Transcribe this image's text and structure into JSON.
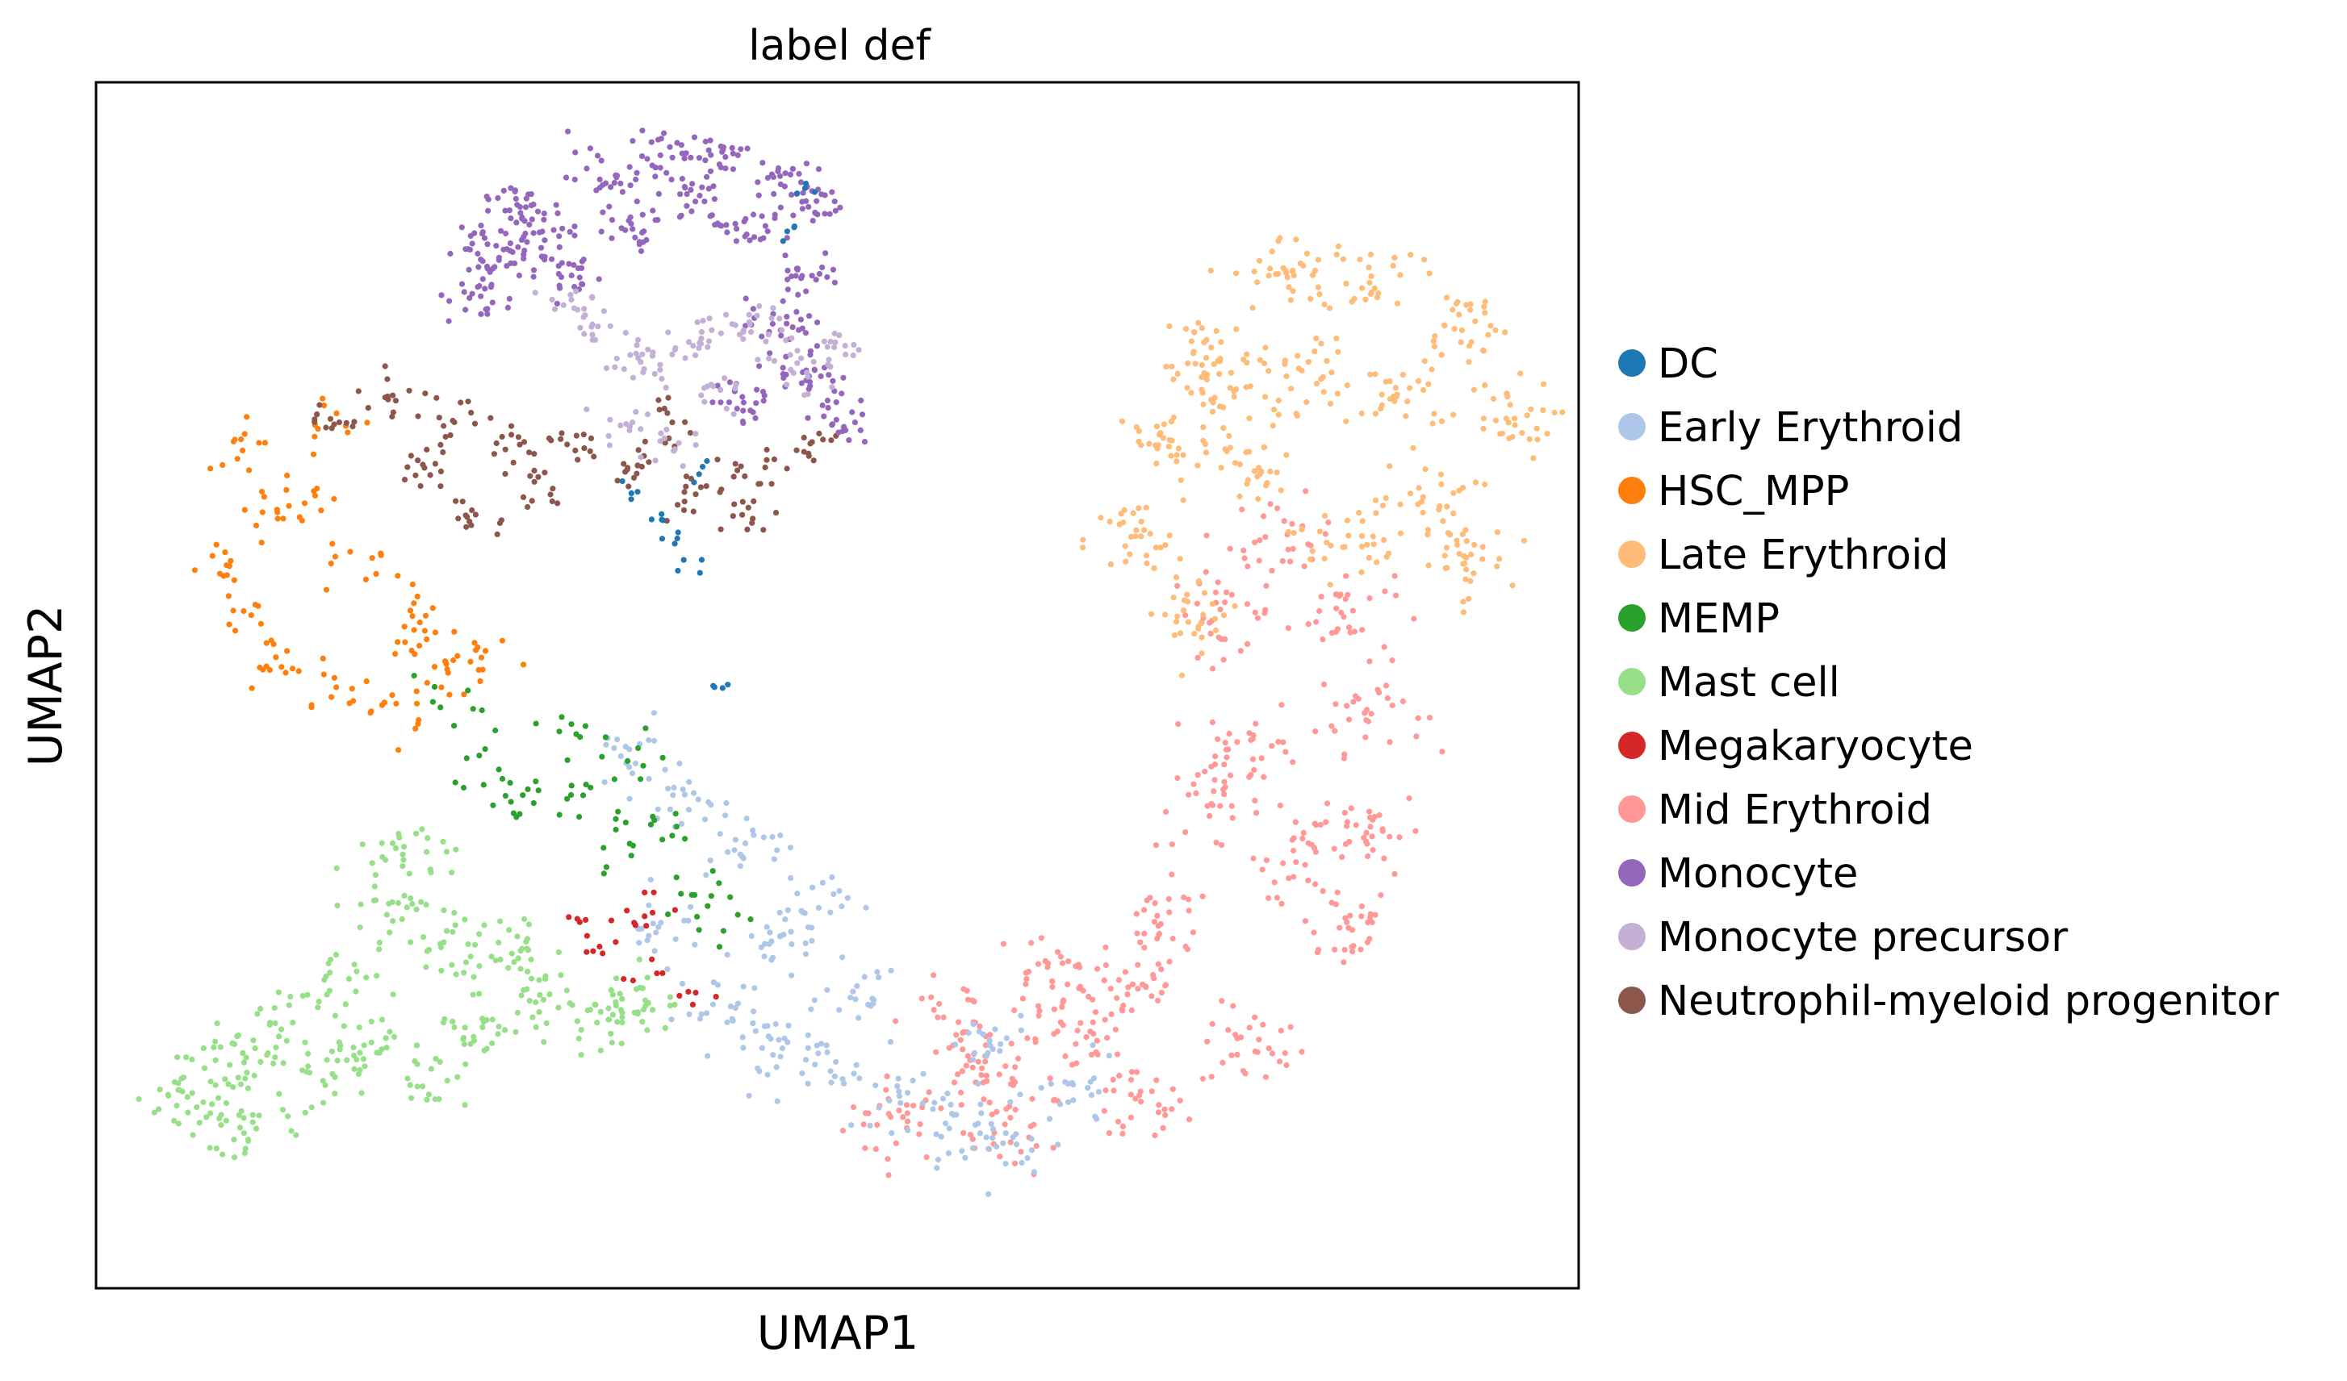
{
  "chart_data": {
    "type": "scatter",
    "title": "label def",
    "xlabel": "UMAP1",
    "ylabel": "UMAP2",
    "grid": false,
    "ticks": false,
    "legend_position": "right, outside plot",
    "xlim": [
      0,
      100
    ],
    "ylim": [
      0,
      100
    ],
    "categories": [
      {
        "name": "DC",
        "color": "#1f77b4"
      },
      {
        "name": "Early Erythroid",
        "color": "#aec7e8"
      },
      {
        "name": "HSC_MPP",
        "color": "#ff7f0e"
      },
      {
        "name": "Late Erythroid",
        "color": "#ffbb78"
      },
      {
        "name": "MEMP",
        "color": "#2ca02c"
      },
      {
        "name": "Mast cell",
        "color": "#98df8a"
      },
      {
        "name": "Megakaryocyte",
        "color": "#d62728"
      },
      {
        "name": "Mid Erythroid",
        "color": "#ff9896"
      },
      {
        "name": "Monocyte",
        "color": "#9467bd"
      },
      {
        "name": "Monocyte precursor",
        "color": "#c5b0d5"
      },
      {
        "name": "Neutrophil-myeloid progenitor",
        "color": "#8c564b"
      }
    ],
    "clusters": [
      {
        "category": "Mid Erythroid",
        "points": [
          [
            54,
            14
          ],
          [
            62,
            13
          ],
          [
            70,
            15
          ],
          [
            78,
            20
          ],
          [
            84,
            30
          ],
          [
            86,
            38
          ],
          [
            86,
            48
          ],
          [
            84,
            56
          ],
          [
            80,
            62
          ],
          [
            76,
            56
          ],
          [
            75,
            40
          ],
          [
            70,
            25
          ],
          [
            60,
            18
          ],
          [
            66,
            20
          ],
          [
            72,
            30
          ],
          [
            78,
            45
          ],
          [
            82,
            36
          ],
          [
            58,
            22
          ],
          [
            64,
            26
          ]
        ],
        "spread": 3.2,
        "count": 560
      },
      {
        "category": "Late Erythroid",
        "points": [
          [
            70,
            62
          ],
          [
            72,
            70
          ],
          [
            75,
            78
          ],
          [
            80,
            84
          ],
          [
            86,
            84
          ],
          [
            92,
            80
          ],
          [
            95,
            72
          ],
          [
            90,
            65
          ],
          [
            84,
            62
          ],
          [
            78,
            68
          ],
          [
            76,
            74
          ],
          [
            88,
            74
          ],
          [
            82,
            76
          ],
          [
            92,
            60
          ],
          [
            74,
            56
          ]
        ],
        "spread": 3.0,
        "count": 450
      },
      {
        "category": "Early Erythroid",
        "points": [
          [
            42,
            23
          ],
          [
            46,
            20
          ],
          [
            50,
            18
          ],
          [
            54,
            16
          ],
          [
            58,
            13
          ],
          [
            62,
            12
          ],
          [
            46,
            28
          ],
          [
            48,
            32
          ],
          [
            44,
            36
          ],
          [
            40,
            40
          ],
          [
            36,
            44
          ],
          [
            38,
            30
          ],
          [
            52,
            24
          ],
          [
            66,
            16
          ],
          [
            60,
            20
          ]
        ],
        "spread": 2.6,
        "count": 300
      },
      {
        "category": "Mast cell",
        "points": [
          [
            6,
            15
          ],
          [
            10,
            13
          ],
          [
            14,
            18
          ],
          [
            18,
            20
          ],
          [
            22,
            18
          ],
          [
            26,
            22
          ],
          [
            30,
            24
          ],
          [
            34,
            22
          ],
          [
            10,
            20
          ],
          [
            16,
            25
          ],
          [
            24,
            28
          ],
          [
            28,
            28
          ],
          [
            20,
            32
          ],
          [
            8,
            18
          ],
          [
            36,
            24
          ],
          [
            22,
            36
          ]
        ],
        "spread": 2.8,
        "count": 380
      },
      {
        "category": "HSC_MPP",
        "points": [
          [
            8,
            60
          ],
          [
            10,
            56
          ],
          [
            12,
            52
          ],
          [
            16,
            50
          ],
          [
            20,
            48
          ],
          [
            24,
            50
          ],
          [
            26,
            52
          ],
          [
            22,
            56
          ],
          [
            18,
            60
          ],
          [
            14,
            66
          ],
          [
            10,
            70
          ],
          [
            12,
            64
          ],
          [
            16,
            72
          ],
          [
            22,
            54
          ]
        ],
        "spread": 2.4,
        "count": 150
      },
      {
        "category": "MEMP",
        "points": [
          [
            28,
            40
          ],
          [
            30,
            42
          ],
          [
            34,
            40
          ],
          [
            36,
            36
          ],
          [
            38,
            38
          ],
          [
            40,
            34
          ],
          [
            26,
            44
          ],
          [
            32,
            46
          ],
          [
            36,
            44
          ],
          [
            42,
            30
          ],
          [
            24,
            48
          ]
        ],
        "spread": 2.3,
        "count": 85
      },
      {
        "category": "Megakaryocyte",
        "points": [
          [
            33,
            30
          ],
          [
            34,
            28
          ],
          [
            36,
            30
          ],
          [
            38,
            32
          ],
          [
            40,
            24
          ],
          [
            37,
            26
          ]
        ],
        "spread": 1.4,
        "count": 30
      },
      {
        "category": "Neutrophil-myeloid progenitor",
        "points": [
          [
            16,
            72
          ],
          [
            20,
            74
          ],
          [
            24,
            72
          ],
          [
            28,
            70
          ],
          [
            32,
            70
          ],
          [
            36,
            68
          ],
          [
            40,
            66
          ],
          [
            44,
            68
          ],
          [
            48,
            70
          ],
          [
            38,
            72
          ],
          [
            30,
            66
          ],
          [
            26,
            64
          ],
          [
            44,
            64
          ],
          [
            22,
            68
          ]
        ],
        "spread": 1.8,
        "count": 170
      },
      {
        "category": "Monocyte",
        "points": [
          [
            26,
            82
          ],
          [
            28,
            86
          ],
          [
            30,
            88
          ],
          [
            34,
            92
          ],
          [
            38,
            94
          ],
          [
            42,
            94
          ],
          [
            46,
            92
          ],
          [
            48,
            90
          ],
          [
            28,
            90
          ],
          [
            32,
            84
          ],
          [
            36,
            88
          ],
          [
            40,
            90
          ],
          [
            44,
            88
          ],
          [
            46,
            80
          ],
          [
            48,
            76
          ],
          [
            50,
            72
          ],
          [
            44,
            74
          ],
          [
            48,
            84
          ],
          [
            26,
            86
          ]
        ],
        "spread": 2.0,
        "count": 420
      },
      {
        "category": "Monocyte precursor",
        "points": [
          [
            34,
            80
          ],
          [
            36,
            78
          ],
          [
            38,
            76
          ],
          [
            40,
            78
          ],
          [
            42,
            80
          ],
          [
            44,
            80
          ],
          [
            46,
            78
          ],
          [
            36,
            72
          ],
          [
            38,
            70
          ],
          [
            42,
            74
          ],
          [
            48,
            76
          ],
          [
            50,
            78
          ],
          [
            32,
            82
          ]
        ],
        "spread": 1.8,
        "count": 150
      },
      {
        "category": "DC",
        "points": [
          [
            36,
            66
          ],
          [
            38,
            64
          ],
          [
            39,
            62
          ],
          [
            40,
            60
          ],
          [
            47,
            88
          ],
          [
            48,
            91
          ],
          [
            42,
            50
          ],
          [
            41,
            68
          ]
        ],
        "spread": 0.9,
        "count": 26
      }
    ]
  }
}
